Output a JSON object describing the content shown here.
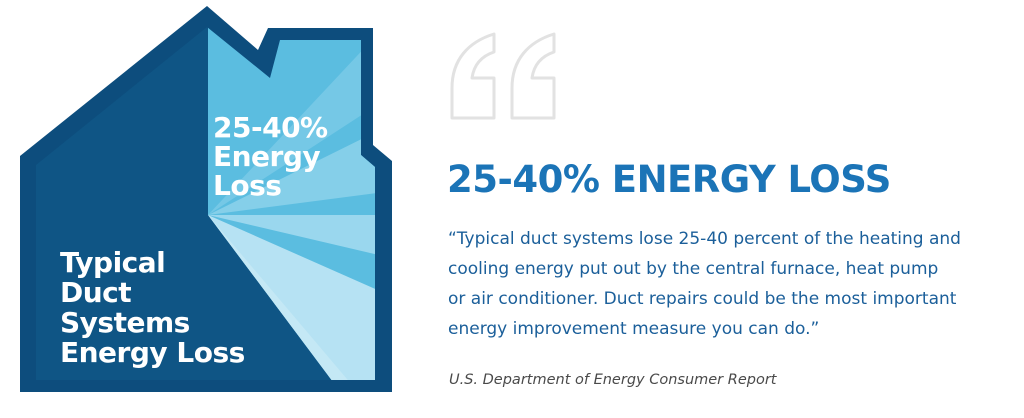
{
  "house": {
    "loss_label": [
      "25-40%",
      "Energy",
      "Loss"
    ],
    "typical_label": [
      "Typical",
      "Duct",
      "Systems",
      "Energy Loss"
    ]
  },
  "quote_icon": "quotation-mark-icon",
  "headline": "25-40% ENERGY LOSS",
  "quote": {
    "lines": [
      "“Typical duct systems lose 25-40 percent of the heating and",
      "cooling energy put out by the central furnace, heat pump",
      "or air conditioner. Duct repairs could be the most important",
      "energy improvement measure you can do.”"
    ]
  },
  "source": "U.S. Department of Energy Consumer Report",
  "colors": {
    "house_dark": "#0d4d7d",
    "house_light": "#5bbde0",
    "headline": "#1b74b7",
    "quote_text": "#1b5f9a",
    "source_text": "#4a4a4a"
  },
  "loss_fraction_range": [
    0.25,
    0.4
  ]
}
